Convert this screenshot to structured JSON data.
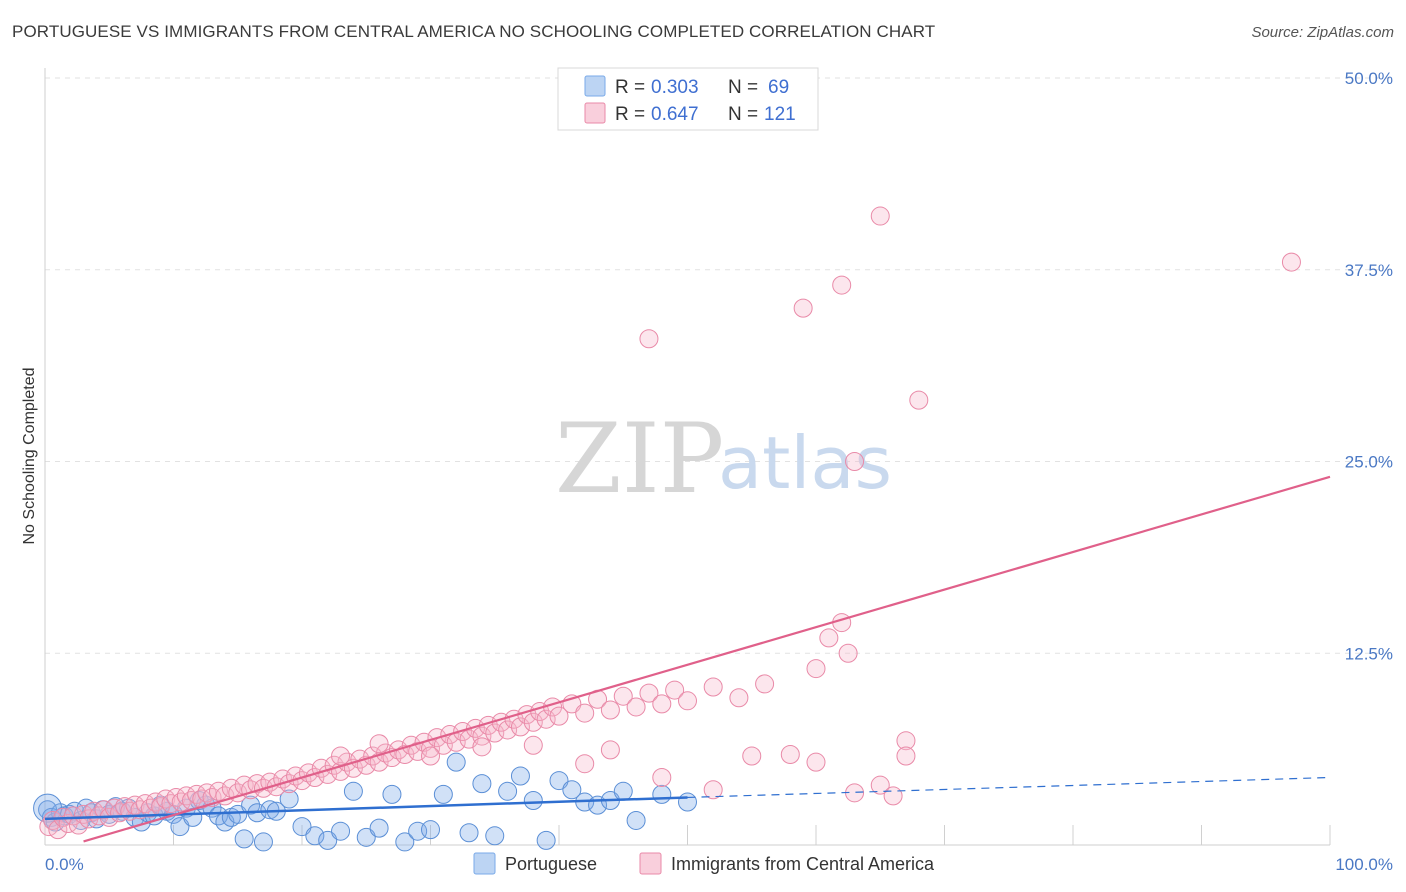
{
  "title": "PORTUGUESE VS IMMIGRANTS FROM CENTRAL AMERICA NO SCHOOLING COMPLETED CORRELATION CHART",
  "source": "Source: ZipAtlas.com",
  "watermark": {
    "zip": "ZIP",
    "atlas": "atlas"
  },
  "legend_top": [
    {
      "r_label": "R =",
      "r_value": "0.303",
      "n_label": "N =",
      "n_value": "69",
      "color": "#a9c8f0"
    },
    {
      "r_label": "R =",
      "r_value": "0.647",
      "n_label": "N =",
      "n_value": "121",
      "color": "#f6b8cc"
    }
  ],
  "legend_bottom": [
    "Portuguese",
    "Immigrants from Central America"
  ],
  "chart_data": {
    "type": "scatter",
    "title": "PORTUGUESE VS IMMIGRANTS FROM CENTRAL AMERICA NO SCHOOLING COMPLETED CORRELATION CHART",
    "xlabel": "",
    "ylabel": "No Schooling Completed",
    "xlim": [
      0,
      100
    ],
    "ylim": [
      0,
      50
    ],
    "x_tick_labels": [
      "0.0%",
      "100.0%"
    ],
    "y_tick_labels": [
      "12.5%",
      "25.0%",
      "37.5%",
      "50.0%"
    ],
    "y_tick_values": [
      12.5,
      25.0,
      37.5,
      50.0
    ],
    "grid": true,
    "series": [
      {
        "name": "Portuguese",
        "color": "#7aaae8",
        "stroke": "#5b8fd6",
        "trend": {
          "x0": 0,
          "y0": 1.7,
          "x1": 50,
          "y1": 3.1,
          "dash_to": 100,
          "dash_y": 4.4,
          "color": "#2f6fd0"
        },
        "points": [
          [
            0.2,
            2.3
          ],
          [
            0.5,
            1.8
          ],
          [
            0.8,
            1.5
          ],
          [
            1.2,
            2.1
          ],
          [
            1.5,
            1.9
          ],
          [
            1.9,
            2.0
          ],
          [
            2.3,
            2.2
          ],
          [
            2.8,
            1.6
          ],
          [
            3.2,
            2.4
          ],
          [
            3.6,
            2.1
          ],
          [
            4.0,
            1.7
          ],
          [
            4.5,
            2.3
          ],
          [
            5.0,
            2.0
          ],
          [
            5.5,
            2.5
          ],
          [
            6.0,
            2.2
          ],
          [
            6.5,
            2.4
          ],
          [
            7.0,
            1.8
          ],
          [
            7.5,
            1.5
          ],
          [
            8.0,
            2.1
          ],
          [
            8.5,
            1.9
          ],
          [
            9.0,
            2.6
          ],
          [
            9.5,
            2.2
          ],
          [
            10.0,
            2.0
          ],
          [
            10.5,
            1.2
          ],
          [
            11.0,
            2.4
          ],
          [
            11.5,
            1.8
          ],
          [
            12.0,
            2.9
          ],
          [
            12.5,
            2.6
          ],
          [
            13.0,
            2.4
          ],
          [
            13.5,
            1.9
          ],
          [
            14.0,
            1.5
          ],
          [
            14.5,
            1.8
          ],
          [
            15.0,
            2.0
          ],
          [
            15.5,
            0.4
          ],
          [
            16.0,
            2.6
          ],
          [
            16.5,
            2.1
          ],
          [
            17.0,
            0.2
          ],
          [
            17.5,
            2.3
          ],
          [
            18.0,
            2.2
          ],
          [
            19.0,
            3.0
          ],
          [
            20.0,
            1.2
          ],
          [
            21.0,
            0.6
          ],
          [
            22.0,
            0.3
          ],
          [
            23.0,
            0.9
          ],
          [
            24.0,
            3.5
          ],
          [
            25.0,
            0.5
          ],
          [
            26.0,
            1.1
          ],
          [
            27.0,
            3.3
          ],
          [
            28.0,
            0.2
          ],
          [
            29.0,
            0.9
          ],
          [
            30.0,
            1.0
          ],
          [
            31.0,
            3.3
          ],
          [
            32.0,
            5.4
          ],
          [
            33.0,
            0.8
          ],
          [
            34.0,
            4.0
          ],
          [
            35.0,
            0.6
          ],
          [
            36.0,
            3.5
          ],
          [
            37.0,
            4.5
          ],
          [
            38.0,
            2.9
          ],
          [
            39.0,
            0.3
          ],
          [
            40.0,
            4.2
          ],
          [
            41.0,
            3.6
          ],
          [
            42.0,
            2.8
          ],
          [
            43.0,
            2.6
          ],
          [
            44.0,
            2.9
          ],
          [
            45.0,
            3.5
          ],
          [
            46.0,
            1.6
          ],
          [
            48.0,
            3.3
          ],
          [
            50.0,
            2.8
          ]
        ]
      },
      {
        "name": "Immigrants from Central America",
        "color": "#f6b8cc",
        "stroke": "#e98aa8",
        "trend": {
          "x0": 0,
          "y0": -0.5,
          "x1": 100,
          "y1": 24.0,
          "color": "#e0608a"
        },
        "points": [
          [
            0.3,
            1.2
          ],
          [
            0.6,
            1.6
          ],
          [
            1.0,
            1.0
          ],
          [
            1.4,
            1.8
          ],
          [
            1.8,
            1.4
          ],
          [
            2.2,
            1.9
          ],
          [
            2.6,
            1.3
          ],
          [
            3.0,
            2.0
          ],
          [
            3.4,
            1.7
          ],
          [
            3.8,
            2.2
          ],
          [
            4.2,
            1.9
          ],
          [
            4.6,
            2.3
          ],
          [
            5.0,
            1.8
          ],
          [
            5.4,
            2.4
          ],
          [
            5.8,
            2.1
          ],
          [
            6.2,
            2.5
          ],
          [
            6.6,
            2.2
          ],
          [
            7.0,
            2.6
          ],
          [
            7.4,
            2.3
          ],
          [
            7.8,
            2.7
          ],
          [
            8.2,
            2.4
          ],
          [
            8.6,
            2.8
          ],
          [
            9.0,
            2.5
          ],
          [
            9.4,
            3.0
          ],
          [
            9.8,
            2.7
          ],
          [
            10.2,
            3.1
          ],
          [
            10.6,
            2.8
          ],
          [
            11.0,
            3.2
          ],
          [
            11.4,
            2.9
          ],
          [
            11.8,
            3.3
          ],
          [
            12.2,
            3.0
          ],
          [
            12.6,
            3.4
          ],
          [
            13.0,
            3.1
          ],
          [
            13.5,
            3.5
          ],
          [
            14.0,
            3.2
          ],
          [
            14.5,
            3.7
          ],
          [
            15.0,
            3.4
          ],
          [
            15.5,
            3.9
          ],
          [
            16.0,
            3.6
          ],
          [
            16.5,
            4.0
          ],
          [
            17.0,
            3.7
          ],
          [
            17.5,
            4.1
          ],
          [
            18.0,
            3.8
          ],
          [
            18.5,
            4.3
          ],
          [
            19.0,
            4.0
          ],
          [
            19.5,
            4.5
          ],
          [
            20.0,
            4.2
          ],
          [
            20.5,
            4.7
          ],
          [
            21.0,
            4.4
          ],
          [
            21.5,
            5.0
          ],
          [
            22.0,
            4.6
          ],
          [
            22.5,
            5.2
          ],
          [
            23.0,
            4.8
          ],
          [
            23.5,
            5.4
          ],
          [
            24.0,
            5.0
          ],
          [
            24.5,
            5.6
          ],
          [
            25.0,
            5.2
          ],
          [
            25.5,
            5.8
          ],
          [
            26.0,
            5.4
          ],
          [
            26.5,
            6.0
          ],
          [
            27.0,
            5.7
          ],
          [
            27.5,
            6.2
          ],
          [
            28.0,
            5.9
          ],
          [
            28.5,
            6.5
          ],
          [
            29.0,
            6.1
          ],
          [
            29.5,
            6.7
          ],
          [
            30.0,
            6.3
          ],
          [
            30.5,
            7.0
          ],
          [
            31.0,
            6.5
          ],
          [
            31.5,
            7.2
          ],
          [
            32.0,
            6.7
          ],
          [
            32.5,
            7.4
          ],
          [
            33.0,
            6.9
          ],
          [
            33.5,
            7.6
          ],
          [
            34.0,
            7.1
          ],
          [
            34.5,
            7.8
          ],
          [
            35.0,
            7.3
          ],
          [
            35.5,
            8.0
          ],
          [
            36.0,
            7.5
          ],
          [
            36.5,
            8.2
          ],
          [
            37.0,
            7.7
          ],
          [
            37.5,
            8.5
          ],
          [
            38.0,
            8.0
          ],
          [
            38.5,
            8.7
          ],
          [
            39.0,
            8.2
          ],
          [
            39.5,
            9.0
          ],
          [
            40.0,
            8.4
          ],
          [
            41.0,
            9.2
          ],
          [
            42.0,
            8.6
          ],
          [
            43.0,
            9.5
          ],
          [
            44.0,
            8.8
          ],
          [
            45.0,
            9.7
          ],
          [
            46.0,
            9.0
          ],
          [
            47.0,
            9.9
          ],
          [
            48.0,
            9.2
          ],
          [
            49.0,
            10.1
          ],
          [
            50.0,
            9.4
          ],
          [
            52.0,
            10.3
          ],
          [
            54.0,
            9.6
          ],
          [
            56.0,
            10.5
          ],
          [
            23.0,
            5.8
          ],
          [
            26.0,
            6.6
          ],
          [
            30.0,
            5.8
          ],
          [
            34.0,
            6.4
          ],
          [
            38.0,
            6.5
          ],
          [
            42.0,
            5.3
          ],
          [
            44.0,
            6.2
          ],
          [
            48.0,
            4.4
          ],
          [
            52.0,
            3.6
          ],
          [
            55.0,
            5.8
          ],
          [
            58.0,
            5.9
          ],
          [
            60.0,
            5.4
          ],
          [
            63.0,
            3.4
          ],
          [
            65.0,
            3.9
          ],
          [
            66.0,
            3.2
          ],
          [
            67.0,
            6.8
          ],
          [
            68.0,
            29.0
          ],
          [
            47.0,
            33.0
          ],
          [
            59.0,
            35.0
          ],
          [
            62.0,
            36.5
          ],
          [
            65.0,
            41.0
          ]
        ]
      }
    ],
    "extra_points_pink": [
      [
        60.0,
        11.5
      ],
      [
        61.0,
        13.5
      ],
      [
        62.0,
        14.5
      ],
      [
        62.5,
        12.5
      ],
      [
        63.0,
        25.0
      ],
      [
        67.0,
        5.8
      ],
      [
        97.0,
        38.0
      ]
    ]
  }
}
